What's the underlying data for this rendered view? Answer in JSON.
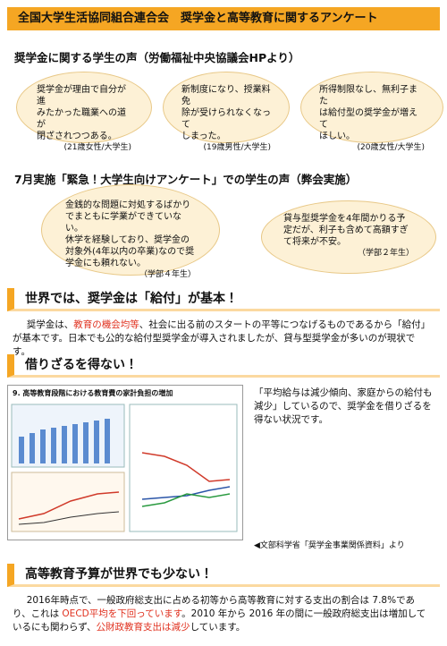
{
  "header": {
    "title": "全国大学生活協同組合連合会　奨学金と高等教育に関するアンケート"
  },
  "voices1": {
    "heading": "奨学金に関する学生の声（労働福祉中央協議会HPより）",
    "bubbles": [
      {
        "lines": [
          "奨学金が理由で自分が進",
          "みたかった職業への道が",
          "閉ざされつつある。"
        ],
        "author": "(21歳女性/大学生)"
      },
      {
        "lines": [
          "新制度になり、授業料免",
          "除が受けられなくなって",
          "しまった。"
        ],
        "author": "(19歳男性/大学生)"
      },
      {
        "lines": [
          "所得制限なし、無利子また",
          "は給付型の奨学金が増えて",
          "ほしい。"
        ],
        "author": "(20歳女性/大学生)"
      }
    ]
  },
  "voices2": {
    "heading": "7月実施「緊急！大学生向けアンケート」での学生の声（弊会実施）",
    "bubbles": [
      {
        "lines": [
          "金銭的な問題に対処するばかり",
          "でまともに学業ができていない。",
          "休学を経験しており、奨学金の",
          "対象外(4年以内の卒業)なので奨",
          "学金にも頼れない。"
        ],
        "author": "（学部４年生）"
      },
      {
        "lines": [
          "貸与型奨学金を4年間かりる予",
          "定だが、利子も含めて高額すぎ",
          "て将来が不安。"
        ],
        "author": "（学部２年生）"
      }
    ]
  },
  "section1": {
    "heading": "世界では、奨学金は「給付」が基本！",
    "paragraph": [
      {
        "text": "奨学金は、",
        "emphasis": false
      },
      {
        "text": "教育の機会均等",
        "emphasis": true
      },
      {
        "text": "、社会に出る前のスタートの平等につなげるものであるから「給付」が基本です。日本でも公的な給付型奨学金が導入されましたが、貸与型奨学金が多いのが現状です。",
        "emphasis": false
      }
    ]
  },
  "section2": {
    "heading": "借りざるを得ない！",
    "figure_title": "9. 高等教育段階における教育費の家計負担の増加",
    "quote": "「平均給与は減少傾向、家庭からの給付も減少」しているので、奨学金を借りざるを得ない状況です。",
    "source": "◀文部科学省「奨学金事業関係資料」より"
  },
  "section3": {
    "heading": "高等教育予算が世界でも少ない！",
    "paragraph": [
      {
        "text": "2016年時点で、一般政府総支出に占める初等から高等教育に対する支出の割合は 7.8%であり、これは ",
        "emphasis": false
      },
      {
        "text": "OECD平均を下回っています",
        "emphasis": true
      },
      {
        "text": "。2010 年から 2016 年の間に一般政府総支出は増加しているにも関わらず、",
        "emphasis": false
      },
      {
        "text": "公財政教育支出は減少",
        "emphasis": true
      },
      {
        "text": "しています。",
        "emphasis": false
      }
    ]
  }
}
